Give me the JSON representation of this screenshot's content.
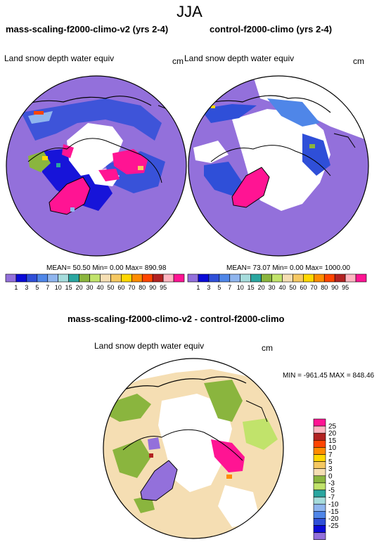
{
  "season": "JJA",
  "panels": {
    "left": {
      "title": "mass-scaling-f2000-climo-v2 (yrs 2-4)",
      "variable": "Land snow depth water equiv",
      "units": "cm",
      "stats": "MEAN=  50.50  Min=   0.00  Max= 890.98"
    },
    "right": {
      "title": "control-f2000-climo (yrs 2-4)",
      "variable": "Land snow depth water equiv",
      "units": "cm",
      "stats": "MEAN=  73.07  Min=   0.00  Max= 1000.00"
    },
    "diff": {
      "title": "mass-scaling-f2000-climo-v2 - control-f2000-climo",
      "variable": "Land snow depth water equiv",
      "units": "cm",
      "stats": "MIN = -961.45  MAX = 848.46"
    }
  },
  "colorbar_main": {
    "labels": [
      "1",
      "3",
      "5",
      "7",
      "10",
      "15",
      "20",
      "30",
      "40",
      "50",
      "60",
      "70",
      "80",
      "90",
      "95"
    ],
    "colors": [
      "#9370db",
      "#0a0ad8",
      "#2f4fd8",
      "#4f86e8",
      "#8fb5ee",
      "#a6dcdc",
      "#2aa6a0",
      "#8ab53e",
      "#c1e36b",
      "#f5deb3",
      "#f5c862",
      "#ffd700",
      "#ff8c00",
      "#ff4500",
      "#b22222",
      "#ffb6c1",
      "#ff1493"
    ]
  },
  "colorbar_diff": {
    "labels": [
      "25",
      "20",
      "15",
      "10",
      "7",
      "5",
      "3",
      "0",
      "-3",
      "-5",
      "-7",
      "-10",
      "-15",
      "-20",
      "-25"
    ],
    "colors": [
      "#ff1493",
      "#ffb6c1",
      "#b22222",
      "#ff4500",
      "#ff8c00",
      "#ffd700",
      "#f5c862",
      "#f5deb3",
      "#8ab53e",
      "#c1e36b",
      "#2aa6a0",
      "#a6dcdc",
      "#8fb5ee",
      "#4f86e8",
      "#2f4fd8",
      "#0a0ad8",
      "#9370db"
    ]
  }
}
